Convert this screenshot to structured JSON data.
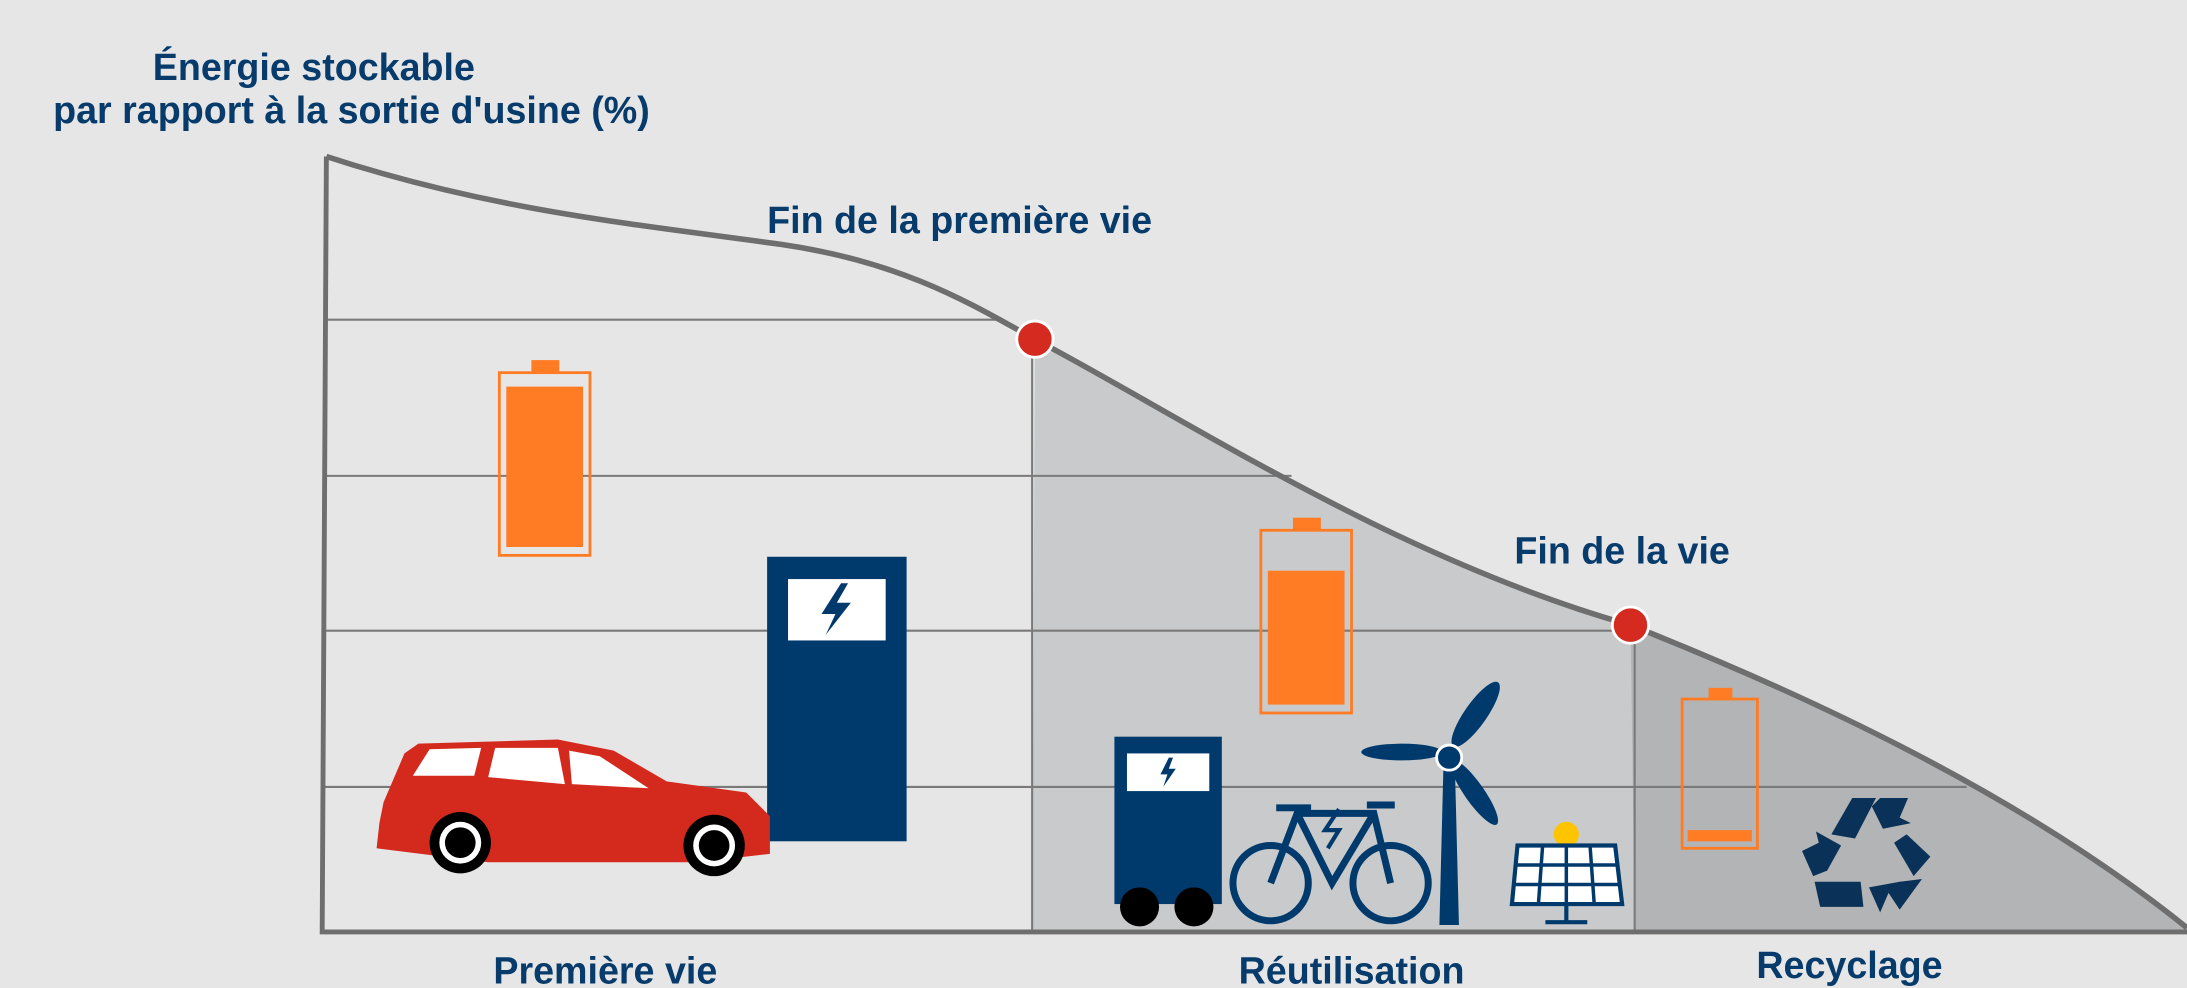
{
  "title": {
    "line1": "Énergie stockable",
    "line2": "par rapport à la sortie d'usine (%)"
  },
  "annotations": [
    "Fin de la première vie",
    "Fin de la vie"
  ],
  "phases": [
    "Première vie",
    "Réutilisation",
    "Recyclage"
  ]
}
